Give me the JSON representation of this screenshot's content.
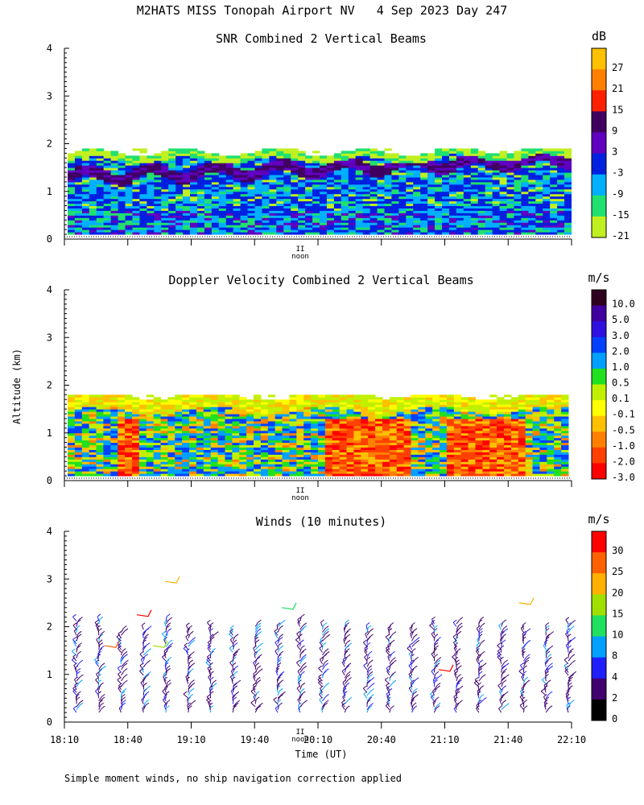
{
  "main_title": "M2HATS MISS Tonopah Airport NV   4 Sep 2023 Day 247",
  "ylabel": "Altitude (km)",
  "xlabel": "Time (UT)",
  "noon_label": "noon",
  "noon_marker": "II",
  "footer_note": "Simple moment winds, no ship navigation correction applied",
  "chart_data": [
    {
      "type": "heatmap",
      "title": "SNR Combined 2 Vertical Beams",
      "ylim": [
        0,
        4
      ],
      "yticks": [
        "0",
        "1",
        "2",
        "3",
        "4"
      ],
      "x_range_utc": [
        "18:10",
        "22:10"
      ],
      "colorbar": {
        "unit": "dB",
        "labels": [
          "27",
          "21",
          "15",
          "9",
          "3",
          "-3",
          "-9",
          "-15",
          "-21"
        ],
        "colors": [
          "#ffc000",
          "#ff8000",
          "#ff2000",
          "#400060",
          "#6000c0",
          "#0020e0",
          "#00b0ff",
          "#20e070",
          "#c0f020"
        ]
      }
    },
    {
      "type": "heatmap",
      "title": "Doppler Velocity Combined 2 Vertical Beams",
      "ylim": [
        0,
        4
      ],
      "yticks": [
        "0",
        "1",
        "2",
        "3",
        "4"
      ],
      "x_range_utc": [
        "18:10",
        "22:10"
      ],
      "colorbar": {
        "unit": "m/s",
        "labels": [
          "10.0",
          "5.0",
          "3.0",
          "2.0",
          "1.0",
          "0.5",
          "0.1",
          "-0.1",
          "-0.5",
          "-1.0",
          "-2.0",
          "-3.0"
        ],
        "colors": [
          "#300020",
          "#4000a0",
          "#3010e0",
          "#0040ff",
          "#00a0ff",
          "#20e020",
          "#c0f000",
          "#ffff00",
          "#ffc000",
          "#ff8000",
          "#ff4000",
          "#ff0000"
        ]
      }
    },
    {
      "type": "scatter",
      "title": "Winds (10 minutes)",
      "ylim": [
        0,
        4
      ],
      "yticks": [
        "0",
        "1",
        "2",
        "3",
        "4"
      ],
      "x_ticks": [
        "18:10",
        "18:40",
        "19:10",
        "19:40",
        "20:10",
        "20:40",
        "21:10",
        "21:40",
        "22:10"
      ],
      "colorbar": {
        "unit": "m/s",
        "labels": [
          "30",
          "25",
          "20",
          "15",
          "10",
          "8",
          "4",
          "2",
          "0"
        ],
        "colors": [
          "#ff0000",
          "#ff6000",
          "#ffb000",
          "#a0e000",
          "#20e060",
          "#00a0ff",
          "#2020ff",
          "#400070",
          "#000000"
        ]
      }
    }
  ]
}
